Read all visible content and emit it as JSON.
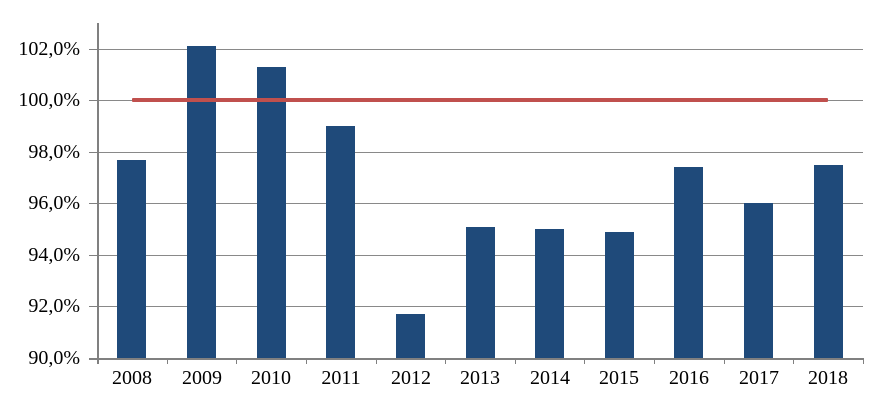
{
  "chart_data": {
    "type": "bar",
    "title": "",
    "xlabel": "",
    "ylabel": "",
    "categories": [
      "2008",
      "2009",
      "2010",
      "2011",
      "2012",
      "2013",
      "2014",
      "2015",
      "2016",
      "2017",
      "2018"
    ],
    "series": [
      {
        "type": "bar",
        "color": "#1F4A7A",
        "values": [
          97.7,
          102.1,
          101.3,
          99.0,
          91.7,
          95.1,
          95.0,
          94.9,
          97.4,
          96.0,
          97.5
        ]
      },
      {
        "type": "line",
        "color": "#C0504D",
        "values": [
          100.0,
          100.0,
          100.0,
          100.0,
          100.0,
          100.0,
          100.0,
          100.0,
          100.0,
          100.0,
          100.0
        ]
      }
    ],
    "ylim": [
      90,
      103
    ],
    "yticks": [
      {
        "value": 90,
        "label": "90,0%"
      },
      {
        "value": 92,
        "label": "92,0%"
      },
      {
        "value": 94,
        "label": "94,0%"
      },
      {
        "value": 96,
        "label": "96,0%"
      },
      {
        "value": 98,
        "label": "98,0%"
      },
      {
        "value": 100,
        "label": "100,0%"
      },
      {
        "value": 102,
        "label": "102,0%"
      }
    ],
    "grid": "horizontal",
    "legend": "none",
    "number_format": "comma-decimal-percent"
  },
  "colors": {
    "bar": "#1F4A7A",
    "reference_line": "#C0504D",
    "gridline": "#898989",
    "axis": "#808080",
    "text": "#000000",
    "background": "#FFFFFF"
  }
}
